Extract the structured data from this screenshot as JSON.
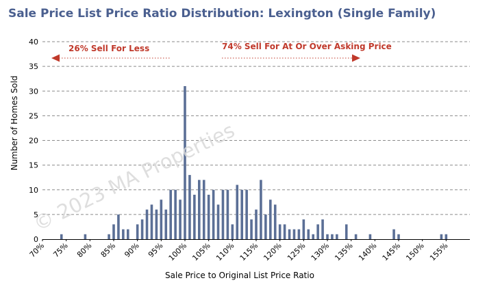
{
  "chart_data": {
    "type": "bar",
    "title": "Sale Price List Price Ratio Distribution: Lexington (Single Family)",
    "xlabel": "Sale Price to Original List Price Ratio",
    "ylabel": "Number of Homes Sold",
    "ylim": [
      0,
      40
    ],
    "yticks": [
      "0",
      "5",
      "10",
      "15",
      "20",
      "25",
      "30",
      "35",
      "40"
    ],
    "xlim": [
      70,
      160
    ],
    "xticks": [
      "70%",
      "75%",
      "80%",
      "85%",
      "90%",
      "95%",
      "100%",
      "105%",
      "110%",
      "115%",
      "120%",
      "125%",
      "130%",
      "135%",
      "140%",
      "145%",
      "150%",
      "155%"
    ],
    "grid": "horizontal dashed",
    "bar_color": "#5b6f96",
    "annotation_color": "#c0392b",
    "x": [
      74,
      79,
      84,
      85,
      86,
      87,
      88,
      90,
      91,
      92,
      93,
      94,
      95,
      96,
      97,
      98,
      99,
      100,
      101,
      102,
      103,
      104,
      105,
      106,
      107,
      108,
      109,
      110,
      111,
      112,
      113,
      114,
      115,
      116,
      117,
      118,
      119,
      120,
      121,
      122,
      123,
      124,
      125,
      126,
      127,
      128,
      129,
      130,
      131,
      132,
      134,
      136,
      139,
      144,
      145,
      154,
      155
    ],
    "values": [
      1,
      1,
      1,
      3,
      5,
      2,
      2,
      3,
      4,
      6,
      7,
      6,
      8,
      6,
      10,
      10,
      8,
      31,
      13,
      9,
      12,
      12,
      9,
      10,
      7,
      10,
      10,
      3,
      11,
      10,
      10,
      4,
      6,
      12,
      5,
      8,
      7,
      3,
      3,
      2,
      2,
      2,
      4,
      2,
      1,
      3,
      4,
      1,
      1,
      1,
      3,
      1,
      1,
      2,
      1,
      1,
      1
    ],
    "annotations": {
      "left": "26% Sell For Less",
      "right": "74% Sell For At Or Over Asking Price"
    },
    "watermark": "© 2023 MA Properties"
  }
}
